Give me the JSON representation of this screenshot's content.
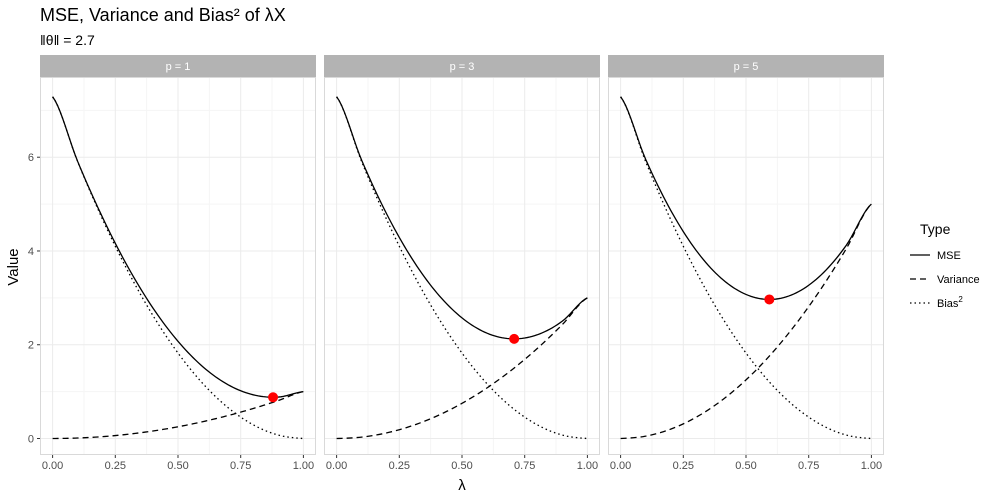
{
  "chart_data": {
    "type": "line",
    "title": "MSE, Variance and Bias² of λX",
    "subtitle": "‖θ‖ = 2.7",
    "xlabel": "λ",
    "ylabel": "Value",
    "xlim": [
      0,
      1
    ],
    "ylim": [
      0,
      7.29
    ],
    "x_ticks": [
      "0.00",
      "0.25",
      "0.50",
      "0.75",
      "1.00"
    ],
    "y_ticks": [
      "0",
      "2",
      "4",
      "6"
    ],
    "grid": true,
    "legend": {
      "title": "Type",
      "position": "right",
      "entries": [
        {
          "label": "MSE",
          "style": "solid"
        },
        {
          "label": "Variance",
          "style": "dashed"
        },
        {
          "label": "Bias",
          "sup": "2",
          "style": "dotted"
        }
      ]
    },
    "x": [
      0,
      0.1,
      0.2,
      0.3,
      0.4,
      0.5,
      0.6,
      0.7,
      0.8,
      0.9,
      1.0
    ],
    "panels": [
      {
        "strip": "p = 1",
        "series": [
          {
            "name": "MSE",
            "values": [
              7.29,
              5.91,
              4.706,
              3.662,
              2.784,
              2.073,
              1.526,
              1.146,
              0.932,
              0.884,
              1.0
            ]
          },
          {
            "name": "Variance",
            "values": [
              0,
              0.01,
              0.04,
              0.09,
              0.16,
              0.25,
              0.36,
              0.49,
              0.64,
              0.81,
              1.0
            ]
          },
          {
            "name": "Bias²",
            "values": [
              7.29,
              5.905,
              4.666,
              3.572,
              2.624,
              1.823,
              1.166,
              0.656,
              0.292,
              0.073,
              0
            ]
          }
        ],
        "min_point": {
          "x": 0.879,
          "y": 0.879
        }
      },
      {
        "strip": "p = 3",
        "series": [
          {
            "name": "MSE",
            "values": [
              7.29,
              5.935,
              4.786,
              3.842,
              3.104,
              2.573,
              2.246,
              2.126,
              2.212,
              2.503,
              3.0
            ]
          },
          {
            "name": "Variance",
            "values": [
              0,
              0.03,
              0.12,
              0.27,
              0.48,
              0.75,
              1.08,
              1.47,
              1.92,
              2.43,
              3.0
            ]
          },
          {
            "name": "Bias²",
            "values": [
              7.29,
              5.905,
              4.666,
              3.572,
              2.624,
              1.823,
              1.166,
              0.656,
              0.292,
              0.073,
              0
            ]
          }
        ],
        "min_point": {
          "x": 0.708,
          "y": 2.125
        }
      },
      {
        "strip": "p = 5",
        "series": [
          {
            "name": "MSE",
            "values": [
              7.29,
              5.955,
              4.866,
              4.022,
              3.424,
              3.073,
              2.966,
              3.106,
              3.492,
              4.123,
              5.0
            ]
          },
          {
            "name": "Variance",
            "values": [
              0,
              0.05,
              0.2,
              0.45,
              0.8,
              1.25,
              1.8,
              2.45,
              3.2,
              4.05,
              5.0
            ]
          },
          {
            "name": "Bias²",
            "values": [
              7.29,
              5.905,
              4.666,
              3.572,
              2.624,
              1.823,
              1.166,
              0.656,
              0.292,
              0.073,
              0
            ]
          }
        ],
        "min_point": {
          "x": 0.593,
          "y": 2.966
        }
      }
    ],
    "colors": {
      "strip_bg": "#b3b3b3",
      "strip_text": "#ffffff",
      "panel_border": "#d9d9d9",
      "grid_major": "#ebebeb",
      "grid_minor": "#f5f5f5",
      "line": "#000000",
      "min_point": "#ff0000"
    }
  }
}
